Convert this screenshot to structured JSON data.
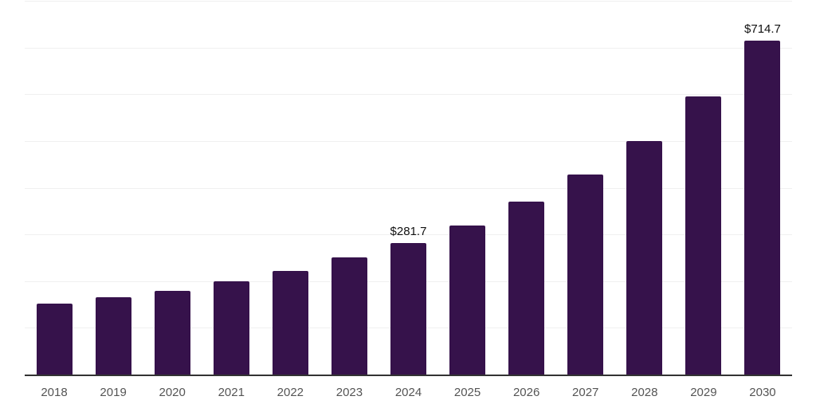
{
  "chart_data": {
    "type": "bar",
    "title": "",
    "xlabel": "",
    "ylabel": "",
    "categories": [
      "2018",
      "2019",
      "2020",
      "2021",
      "2022",
      "2023",
      "2024",
      "2025",
      "2026",
      "2027",
      "2028",
      "2029",
      "2030"
    ],
    "values": [
      151.0,
      166.2,
      179.8,
      200.2,
      222.5,
      250.3,
      281.7,
      319.7,
      369.8,
      428.3,
      500.6,
      595.1,
      714.7
    ],
    "value_labels": {
      "2024": "$281.7",
      "2030": "$714.7"
    },
    "ylim": [
      0,
      800
    ],
    "gridline_step": 100,
    "grid": true,
    "legend": false,
    "currency_prefix": "$"
  },
  "colors": {
    "bar": "#36124B",
    "axis_line": "#333333",
    "gridline": "#f0f0f0",
    "tick_label": "#555555",
    "value_label": "#111111",
    "background": "#ffffff"
  }
}
